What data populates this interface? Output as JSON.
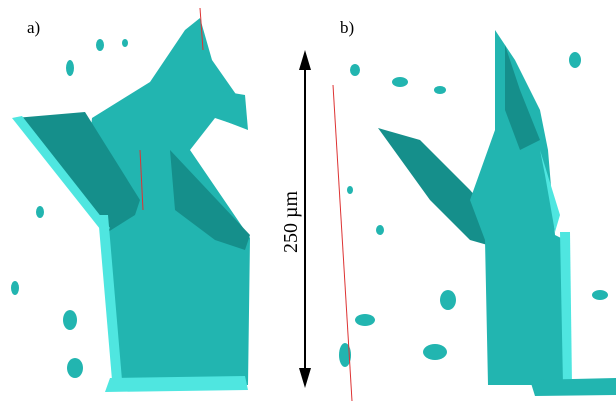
{
  "panels": [
    {
      "label": "a)"
    },
    {
      "label": "b)"
    }
  ],
  "scale_bar": {
    "label": "250 µm"
  }
}
